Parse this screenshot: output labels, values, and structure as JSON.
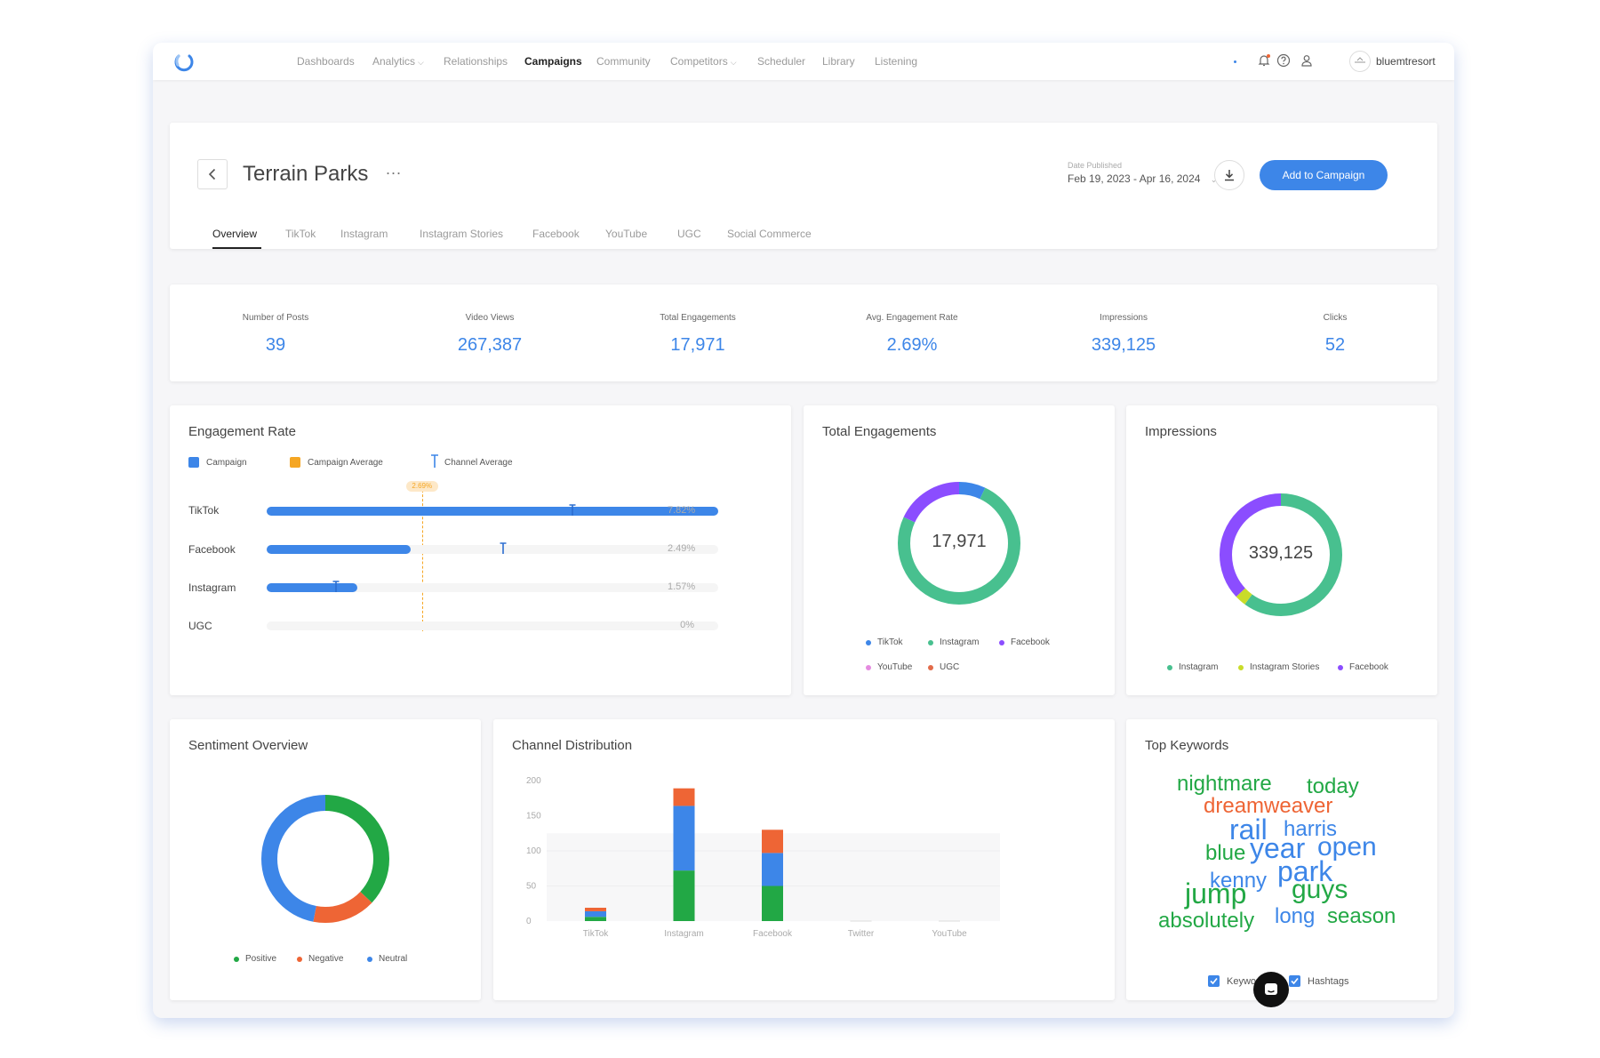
{
  "nav": {
    "items": [
      {
        "label": "Dashboards",
        "dropdown": false
      },
      {
        "label": "Analytics",
        "dropdown": true
      },
      {
        "label": "Relationships",
        "dropdown": false
      },
      {
        "label": "Campaigns",
        "dropdown": false,
        "active": true
      },
      {
        "label": "Community",
        "dropdown": false
      },
      {
        "label": "Competitors",
        "dropdown": true
      },
      {
        "label": "Scheduler",
        "dropdown": false
      },
      {
        "label": "Library",
        "dropdown": false
      },
      {
        "label": "Listening",
        "dropdown": false
      }
    ],
    "username": "bluemtresort",
    "icons": [
      "notification-bell-icon",
      "help-icon",
      "user-icon",
      "avatar"
    ]
  },
  "header": {
    "title": "Terrain Parks",
    "more": "...",
    "date_label": "Date Published",
    "date_value": "Feb 19, 2023 - Apr 16, 2024",
    "add_button": "Add to Campaign",
    "tabs": [
      "Overview",
      "TikTok",
      "Instagram",
      "Instagram Stories",
      "Facebook",
      "YouTube",
      "UGC",
      "Social Commerce"
    ],
    "active_tab": "Overview"
  },
  "stats": [
    {
      "label": "Number of Posts",
      "value": "39"
    },
    {
      "label": "Video Views",
      "value": "267,387"
    },
    {
      "label": "Total Engagements",
      "value": "17,971"
    },
    {
      "label": "Avg. Engagement Rate",
      "value": "2.69%"
    },
    {
      "label": "Impressions",
      "value": "339,125"
    },
    {
      "label": "Clicks",
      "value": "52"
    }
  ],
  "engagement_rate": {
    "title": "Engagement Rate",
    "legend": [
      "Campaign",
      "Campaign Average",
      "Channel Average"
    ],
    "campaign_average_label": "2.69%",
    "campaign_average": 2.69,
    "max": 7.82,
    "rows": [
      {
        "label": "TikTok",
        "value": 7.82,
        "pct": "7.82%",
        "channel_avg": 5.3
      },
      {
        "label": "Facebook",
        "value": 2.49,
        "pct": "2.49%",
        "channel_avg": 4.1
      },
      {
        "label": "Instagram",
        "value": 1.57,
        "pct": "1.57%",
        "channel_avg": 1.2
      },
      {
        "label": "UGC",
        "value": 0,
        "pct": "0%",
        "channel_avg": null
      }
    ],
    "colors": {
      "campaign": "#3d86e8",
      "campaign_average": "#f5a623",
      "channel_average": "#3d86e8"
    }
  },
  "total_engagements": {
    "title": "Total Engagements",
    "center": "17,971",
    "legend": [
      {
        "label": "TikTok",
        "color": "#3d86e8"
      },
      {
        "label": "Instagram",
        "color": "#48c08f"
      },
      {
        "label": "Facebook",
        "color": "#8b4dff"
      },
      {
        "label": "YouTube",
        "color": "#e58be0"
      },
      {
        "label": "UGC",
        "color": "#e26b4a"
      }
    ],
    "segments": [
      {
        "label": "TikTok",
        "fraction": 0.07,
        "color": "#3d86e8"
      },
      {
        "label": "Instagram",
        "fraction": 0.75,
        "color": "#48c08f"
      },
      {
        "label": "Facebook",
        "fraction": 0.18,
        "color": "#8b4dff"
      }
    ]
  },
  "impressions": {
    "title": "Impressions",
    "center": "339,125",
    "legend": [
      {
        "label": "Instagram",
        "color": "#48c08f"
      },
      {
        "label": "Instagram Stories",
        "color": "#c9dc2a"
      },
      {
        "label": "Facebook",
        "color": "#8b4dff"
      }
    ],
    "segments": [
      {
        "label": "Instagram",
        "fraction": 0.6,
        "color": "#48c08f"
      },
      {
        "label": "Instagram Stories",
        "fraction": 0.03,
        "color": "#c9dc2a"
      },
      {
        "label": "Facebook",
        "fraction": 0.37,
        "color": "#8b4dff"
      }
    ]
  },
  "sentiment": {
    "title": "Sentiment Overview",
    "legend": [
      {
        "label": "Positive",
        "color": "#22a845"
      },
      {
        "label": "Negative",
        "color": "#ee6535"
      },
      {
        "label": "Neutral",
        "color": "#3d86e8"
      }
    ],
    "segments": [
      {
        "label": "Positive",
        "fraction": 0.37,
        "color": "#22a845"
      },
      {
        "label": "Negative",
        "fraction": 0.16,
        "color": "#ee6535"
      },
      {
        "label": "Neutral",
        "fraction": 0.47,
        "color": "#3d86e8"
      }
    ]
  },
  "chart_data": {
    "type": "bar",
    "title": "Channel Distribution",
    "stacked": true,
    "categories": [
      "TikTok",
      "Instagram",
      "Facebook",
      "Twitter",
      "YouTube"
    ],
    "ylim": [
      0,
      200
    ],
    "yticks": [
      "0",
      "50",
      "100",
      "150",
      "200"
    ],
    "series": [
      {
        "color": "#22a845",
        "values": [
          6,
          72,
          50,
          0,
          0
        ]
      },
      {
        "color": "#3d86e8",
        "values": [
          8,
          92,
          47,
          0,
          0
        ]
      },
      {
        "color": "#ee6535",
        "values": [
          5,
          25,
          33,
          0,
          0
        ]
      }
    ]
  },
  "keywords": {
    "title": "Top Keywords",
    "words": [
      {
        "text": "nightmare",
        "color": "#22a845"
      },
      {
        "text": "today",
        "color": "#22a845"
      },
      {
        "text": "dreamweaver",
        "color": "#ee6535"
      },
      {
        "text": "rail",
        "color": "#3d86e8"
      },
      {
        "text": "harris",
        "color": "#3d86e8"
      },
      {
        "text": "blue",
        "color": "#22a845"
      },
      {
        "text": "year",
        "color": "#3d86e8"
      },
      {
        "text": "open",
        "color": "#3d86e8"
      },
      {
        "text": "kenny",
        "color": "#3d86e8"
      },
      {
        "text": "park",
        "color": "#3d86e8"
      },
      {
        "text": "jump",
        "color": "#22a845"
      },
      {
        "text": "guys",
        "color": "#22a845"
      },
      {
        "text": "absolutely",
        "color": "#22a845"
      },
      {
        "text": "long",
        "color": "#3d86e8"
      },
      {
        "text": "season",
        "color": "#22a845"
      }
    ],
    "filters": [
      {
        "label": "Keywords",
        "checked": true
      },
      {
        "label": "Hashtags",
        "checked": true
      }
    ]
  }
}
